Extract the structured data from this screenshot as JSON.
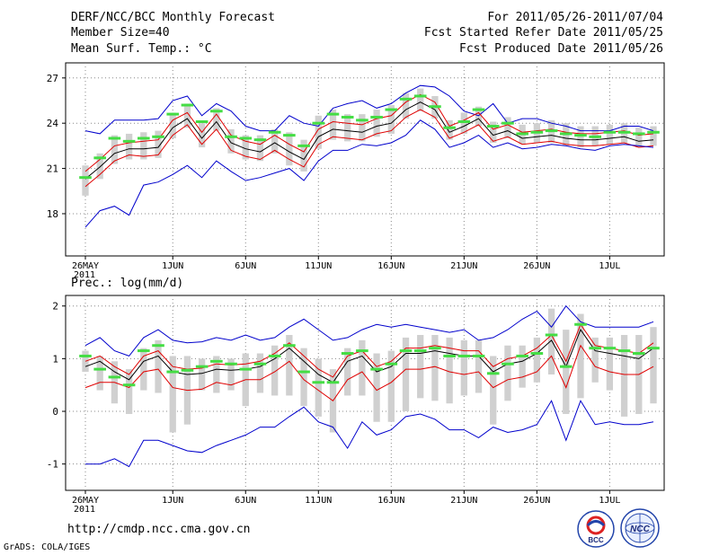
{
  "header": {
    "title": "DERF/NCC/BCC Monthly Forecast",
    "member_size": "Member Size=40",
    "variable_top": "Mean Surf. Temp.: °C",
    "period": "For 2011/05/26-2011/07/04",
    "started_refer": "Fcst Started Refer Date 2011/05/25",
    "produced": "Fcst Produced Date 2011/05/26"
  },
  "variable_bottom": "Prec.: log(mm/d)",
  "footer": {
    "url": "http://cmdp.ncc.cma.gov.cn",
    "grads": "GrADS: COLA/IGES",
    "logo_bcc": "BCC",
    "logo_ncc": "NCC"
  },
  "colors": {
    "ensemble_mean": "#000000",
    "spread": "#e00000",
    "envelope": "#0000cc",
    "member_median": "#44dd44",
    "box": "#d0d0d0"
  },
  "chart_data": [
    {
      "type": "line",
      "title": "Mean Surf. Temp.: °C",
      "x_ticks": [
        "26MAY",
        "1JUN",
        "6JUN",
        "11JUN",
        "16JUN",
        "21JUN",
        "26JUN",
        "1JUL"
      ],
      "x_tick_day_index": [
        0,
        6,
        11,
        16,
        21,
        26,
        31,
        36
      ],
      "year_label": "2011",
      "ylim": [
        15.2,
        28
      ],
      "y_ticks": [
        18,
        21,
        24,
        27
      ],
      "days": 40,
      "series": [
        {
          "name": "ensemble max",
          "color": "#0000cc",
          "values": [
            23.5,
            23.3,
            24.2,
            24.2,
            24.2,
            24.3,
            25.5,
            25.8,
            24.5,
            25.3,
            24.8,
            23.8,
            23.5,
            23.5,
            24.5,
            24.0,
            23.8,
            25.0,
            25.3,
            25.5,
            25.0,
            25.3,
            26.0,
            26.5,
            26.4,
            25.8,
            24.8,
            24.5,
            25.3,
            24.0,
            24.3,
            24.3,
            24.0,
            23.8,
            23.5,
            23.5,
            23.5,
            23.8,
            23.8,
            23.5
          ]
        },
        {
          "name": "upper spread",
          "color": "#e00000",
          "values": [
            20.8,
            21.6,
            22.5,
            22.7,
            22.8,
            22.9,
            24.2,
            24.7,
            23.4,
            24.6,
            23.2,
            22.8,
            22.6,
            23.2,
            22.6,
            22.1,
            23.6,
            24.1,
            24.0,
            23.9,
            24.3,
            24.5,
            25.4,
            25.9,
            25.4,
            23.8,
            24.2,
            24.7,
            23.6,
            23.9,
            23.4,
            23.5,
            23.6,
            23.4,
            23.3,
            23.3,
            23.4,
            23.5,
            23.2,
            23.3
          ]
        },
        {
          "name": "ensemble mean",
          "color": "#000000",
          "values": [
            20.3,
            21.1,
            22.0,
            22.3,
            22.3,
            22.4,
            23.7,
            24.3,
            23.0,
            24.1,
            22.7,
            22.3,
            22.1,
            22.7,
            22.1,
            21.6,
            23.1,
            23.6,
            23.5,
            23.4,
            23.8,
            24.0,
            24.9,
            25.4,
            24.9,
            23.4,
            23.8,
            24.3,
            23.2,
            23.5,
            23.0,
            23.1,
            23.2,
            23.0,
            22.9,
            22.9,
            23.0,
            23.1,
            22.8,
            22.9
          ]
        },
        {
          "name": "lower spread",
          "color": "#e00000",
          "values": [
            19.8,
            20.6,
            21.5,
            21.9,
            21.8,
            21.9,
            23.2,
            23.9,
            22.6,
            23.6,
            22.2,
            21.8,
            21.6,
            22.2,
            21.6,
            21.1,
            22.6,
            23.1,
            23.0,
            22.9,
            23.3,
            23.5,
            24.4,
            24.9,
            24.4,
            23.0,
            23.4,
            23.9,
            22.8,
            23.1,
            22.6,
            22.7,
            22.8,
            22.6,
            22.5,
            22.5,
            22.6,
            22.7,
            22.4,
            22.5
          ]
        },
        {
          "name": "ensemble min",
          "color": "#0000cc",
          "values": [
            17.1,
            18.2,
            18.5,
            17.9,
            19.9,
            20.1,
            20.6,
            21.2,
            20.4,
            21.5,
            20.8,
            20.2,
            20.4,
            20.7,
            21.0,
            20.2,
            21.5,
            22.2,
            22.2,
            22.6,
            22.5,
            22.7,
            23.2,
            24.2,
            23.6,
            22.4,
            22.7,
            23.2,
            22.4,
            22.7,
            22.3,
            22.4,
            22.6,
            22.5,
            22.3,
            22.2,
            22.5,
            22.6,
            22.5,
            22.4
          ]
        }
      ],
      "boxes": {
        "low": [
          19.2,
          20.3,
          21.3,
          21.6,
          21.6,
          21.7,
          23.0,
          23.7,
          22.4,
          23.5,
          22.0,
          21.6,
          21.5,
          22.0,
          21.2,
          20.8,
          22.3,
          22.9,
          22.8,
          22.8,
          23.1,
          23.3,
          24.3,
          24.8,
          24.3,
          22.9,
          23.3,
          23.8,
          22.7,
          23.0,
          22.6,
          22.7,
          22.7,
          22.5,
          22.4,
          22.5,
          22.6,
          22.7,
          22.4,
          22.5
        ],
        "high": [
          21.2,
          22.0,
          23.2,
          23.3,
          23.4,
          23.5,
          24.7,
          25.3,
          24.0,
          25.0,
          23.6,
          23.2,
          23.2,
          23.6,
          23.4,
          22.9,
          24.5,
          24.9,
          24.6,
          24.6,
          24.9,
          25.2,
          26.0,
          26.3,
          25.8,
          24.2,
          24.7,
          25.1,
          24.1,
          24.4,
          23.9,
          24.0,
          24.2,
          24.0,
          23.8,
          23.8,
          23.9,
          24.0,
          23.7,
          23.8
        ],
        "median": [
          20.4,
          21.7,
          23.0,
          22.8,
          23.0,
          23.1,
          24.6,
          25.2,
          24.1,
          24.8,
          23.1,
          23.0,
          22.9,
          23.4,
          23.2,
          22.5,
          24.0,
          24.6,
          24.4,
          24.2,
          24.4,
          24.9,
          25.6,
          25.8,
          25.1,
          23.7,
          24.1,
          24.9,
          23.8,
          24.0,
          23.3,
          23.4,
          23.5,
          23.3,
          23.2,
          23.1,
          23.4,
          23.4,
          23.3,
          23.4
        ]
      }
    },
    {
      "type": "line",
      "title": "Prec.: log(mm/d)",
      "x_ticks": [
        "26MAY",
        "1JUN",
        "6JUN",
        "11JUN",
        "16JUN",
        "21JUN",
        "26JUN",
        "1JUL"
      ],
      "x_tick_day_index": [
        0,
        6,
        11,
        16,
        21,
        26,
        31,
        36
      ],
      "year_label": "2011",
      "ylim": [
        -1.5,
        2.2
      ],
      "y_ticks": [
        -1,
        0,
        1,
        2
      ],
      "days": 40,
      "series": [
        {
          "name": "ensemble max",
          "color": "#0000cc",
          "values": [
            1.25,
            1.4,
            1.15,
            1.05,
            1.4,
            1.55,
            1.35,
            1.3,
            1.32,
            1.4,
            1.35,
            1.45,
            1.35,
            1.4,
            1.6,
            1.75,
            1.55,
            1.35,
            1.4,
            1.55,
            1.65,
            1.6,
            1.65,
            1.6,
            1.55,
            1.5,
            1.55,
            1.35,
            1.4,
            1.55,
            1.75,
            1.9,
            1.6,
            2.0,
            1.7,
            1.6,
            1.6,
            1.6,
            1.6,
            1.7
          ]
        },
        {
          "name": "upper spread",
          "color": "#e00000",
          "values": [
            0.95,
            1.05,
            0.85,
            0.7,
            1.05,
            1.15,
            0.85,
            0.8,
            0.82,
            0.9,
            0.88,
            0.9,
            0.95,
            1.1,
            1.3,
            1.05,
            0.8,
            0.65,
            1.05,
            1.15,
            0.85,
            0.95,
            1.2,
            1.2,
            1.25,
            1.2,
            1.15,
            1.15,
            0.85,
            1.0,
            1.05,
            1.2,
            1.45,
            0.95,
            1.65,
            1.25,
            1.2,
            1.15,
            1.1,
            1.3
          ]
        },
        {
          "name": "ensemble mean",
          "color": "#000000",
          "values": [
            0.85,
            0.95,
            0.75,
            0.6,
            0.95,
            1.05,
            0.75,
            0.7,
            0.72,
            0.8,
            0.78,
            0.8,
            0.85,
            1.0,
            1.2,
            0.95,
            0.7,
            0.55,
            0.95,
            1.05,
            0.75,
            0.85,
            1.1,
            1.1,
            1.15,
            1.1,
            1.05,
            1.05,
            0.75,
            0.9,
            0.95,
            1.1,
            1.35,
            0.85,
            1.55,
            1.15,
            1.1,
            1.05,
            1.0,
            1.2
          ]
        },
        {
          "name": "lower spread",
          "color": "#e00000",
          "values": [
            0.45,
            0.55,
            0.55,
            0.45,
            0.75,
            0.8,
            0.45,
            0.4,
            0.42,
            0.55,
            0.5,
            0.6,
            0.6,
            0.75,
            0.95,
            0.6,
            0.4,
            0.2,
            0.6,
            0.75,
            0.4,
            0.55,
            0.8,
            0.8,
            0.85,
            0.75,
            0.7,
            0.75,
            0.45,
            0.6,
            0.65,
            0.75,
            1.05,
            0.45,
            1.25,
            0.85,
            0.75,
            0.7,
            0.7,
            0.85
          ]
        },
        {
          "name": "ensemble min",
          "color": "#0000cc",
          "values": [
            -1.0,
            -1.0,
            -0.9,
            -1.05,
            -0.55,
            -0.55,
            -0.65,
            -0.75,
            -0.78,
            -0.65,
            -0.55,
            -0.45,
            -0.3,
            -0.3,
            -0.1,
            0.08,
            -0.2,
            -0.3,
            -0.7,
            -0.2,
            -0.45,
            -0.35,
            -0.1,
            -0.05,
            -0.15,
            -0.35,
            -0.35,
            -0.5,
            -0.3,
            -0.4,
            -0.35,
            -0.25,
            0.2,
            -0.55,
            0.2,
            -0.25,
            -0.2,
            -0.25,
            -0.25,
            -0.2
          ]
        }
      ],
      "boxes": {
        "low": [
          0.75,
          0.4,
          0.15,
          -0.05,
          0.4,
          0.35,
          -0.4,
          -0.25,
          0.4,
          0.35,
          0.4,
          0.1,
          0.35,
          0.3,
          0.3,
          0.1,
          -0.1,
          -0.4,
          0.3,
          0.3,
          -0.2,
          -0.2,
          0.0,
          0.25,
          0.2,
          0.15,
          0.3,
          0.35,
          -0.25,
          0.2,
          0.45,
          0.55,
          0.7,
          -0.05,
          0.25,
          0.55,
          0.4,
          -0.1,
          -0.05,
          0.15
        ],
        "high": [
          1.15,
          1.05,
          0.95,
          0.8,
          1.2,
          1.35,
          1.05,
          1.05,
          1.0,
          1.05,
          1.0,
          1.1,
          1.1,
          1.25,
          1.45,
          1.2,
          1.0,
          0.8,
          1.2,
          1.35,
          1.1,
          1.15,
          1.4,
          1.45,
          1.45,
          1.4,
          1.35,
          1.35,
          1.05,
          1.25,
          1.25,
          1.4,
          1.95,
          1.55,
          1.85,
          1.4,
          1.4,
          1.45,
          1.45,
          1.6
        ],
        "median": [
          1.05,
          0.8,
          0.65,
          0.5,
          1.15,
          1.25,
          0.75,
          0.78,
          0.85,
          0.95,
          0.9,
          0.8,
          0.9,
          1.05,
          1.25,
          0.75,
          0.55,
          0.55,
          1.1,
          1.15,
          0.8,
          0.9,
          1.15,
          1.15,
          1.2,
          1.05,
          1.05,
          1.05,
          0.72,
          0.9,
          1.05,
          1.1,
          1.45,
          0.85,
          1.65,
          1.2,
          1.2,
          1.15,
          1.1,
          1.2
        ]
      }
    }
  ]
}
